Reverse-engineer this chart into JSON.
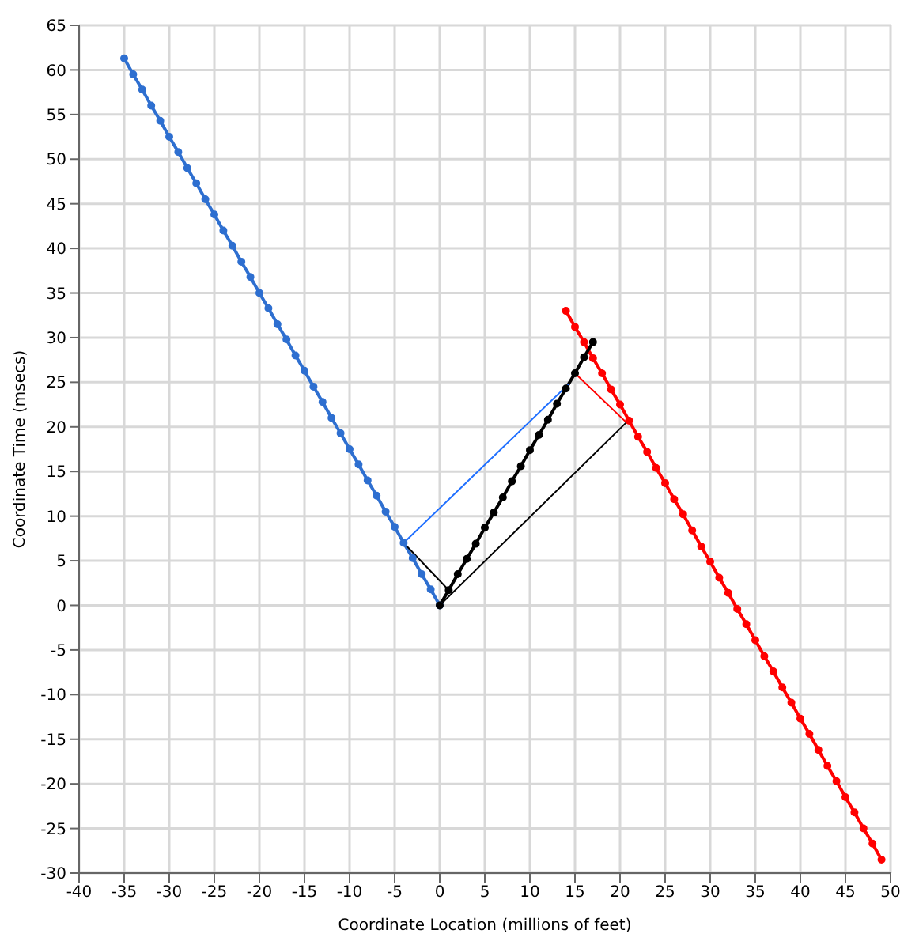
{
  "chart_data": {
    "type": "line",
    "xlabel": "Coordinate Location (millions of feet)",
    "ylabel": "Coordinate Time (msecs)",
    "xlim": [
      -40,
      50
    ],
    "xticks": [
      -40,
      -35,
      -30,
      -25,
      -20,
      -15,
      -10,
      -5,
      0,
      5,
      10,
      15,
      20,
      25,
      30,
      35,
      40,
      45,
      50
    ],
    "ylim": [
      -30,
      65
    ],
    "yticks": [
      -30,
      -25,
      -20,
      -15,
      -10,
      -5,
      0,
      5,
      10,
      15,
      20,
      25,
      30,
      35,
      40,
      45,
      50,
      55,
      60,
      65
    ],
    "grid": true,
    "marker": "circle",
    "line_style": "solid",
    "series": [
      {
        "color": "#2e6fd0",
        "x": [
          -35,
          -34,
          -33,
          -32,
          -31,
          -30,
          -29,
          -28,
          -27,
          -26,
          -25,
          -24,
          -23,
          -22,
          -21,
          -20,
          -19,
          -18,
          -17,
          -16,
          -15,
          -14,
          -13,
          -12,
          -11,
          -10,
          -9,
          -8,
          -7,
          -6,
          -5,
          -4,
          -3,
          -2,
          -1,
          0
        ],
        "values": [
          61.3,
          59.5,
          57.8,
          56,
          54.3,
          52.5,
          50.8,
          49,
          47.3,
          45.5,
          43.8,
          42,
          40.3,
          38.5,
          36.8,
          35,
          33.3,
          31.5,
          29.8,
          28,
          26.3,
          24.5,
          22.8,
          21,
          19.3,
          17.5,
          15.8,
          14,
          12.3,
          10.5,
          8.8,
          7,
          5.3,
          3.5,
          1.8,
          0
        ]
      },
      {
        "color": "#ff0000",
        "x": [
          14,
          15,
          16,
          17,
          18,
          19,
          20,
          21,
          22,
          23,
          24,
          25,
          26,
          27,
          28,
          29,
          30,
          31,
          32,
          33,
          34,
          35,
          36,
          37,
          38,
          39,
          40,
          41,
          42,
          43,
          44,
          45,
          46,
          47,
          48,
          49
        ],
        "values": [
          33,
          31.2,
          29.5,
          27.7,
          26,
          24.2,
          22.5,
          20.7,
          18.9,
          17.2,
          15.4,
          13.7,
          11.9,
          10.2,
          8.4,
          6.6,
          4.9,
          3.1,
          1.4,
          -0.4,
          -2.1,
          -3.9,
          -5.7,
          -7.4,
          -9.2,
          -10.9,
          -12.7,
          -14.4,
          -16.2,
          -18,
          -19.7,
          -21.5,
          -23.2,
          -25,
          -26.7,
          -28.5
        ]
      },
      {
        "color": "#000000",
        "x": [
          0,
          1,
          2,
          3,
          4,
          5,
          6,
          7,
          8,
          9,
          10,
          11,
          12,
          13,
          14,
          15,
          16,
          17
        ],
        "values": [
          0,
          1.7,
          3.5,
          5.2,
          6.9,
          8.7,
          10.4,
          12.1,
          13.9,
          15.6,
          17.4,
          19.1,
          20.8,
          22.6,
          24.3,
          26,
          27.8,
          29.5
        ]
      },
      {
        "color": "#1f6fff",
        "marker": "none",
        "x": [
          -4,
          14.3
        ],
        "values": [
          7,
          24.8
        ]
      },
      {
        "color": "#ff0000",
        "marker": "none",
        "x": [
          15,
          20.7
        ],
        "values": [
          26,
          20.5
        ]
      },
      {
        "color": "#000000",
        "marker": "none",
        "x": [
          0,
          20.7
        ],
        "values": [
          0,
          20.5
        ]
      },
      {
        "color": "#000000",
        "marker": "none",
        "x": [
          -4,
          1
        ],
        "values": [
          7,
          1.7
        ]
      }
    ]
  }
}
